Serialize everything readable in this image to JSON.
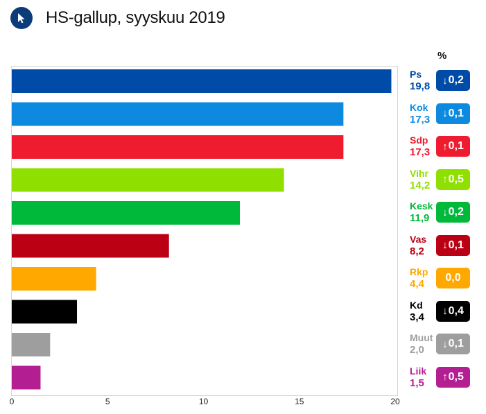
{
  "header": {
    "title": "HS-gallup, syyskuu 2019",
    "logo_icon": "cursor-arrow-icon"
  },
  "pct_header": "%",
  "chart_data": {
    "type": "bar",
    "orientation": "horizontal",
    "title": "HS-gallup, syyskuu 2019",
    "xlabel": "",
    "ylabel": "",
    "xlim": [
      0,
      20
    ],
    "xticks": [
      "0",
      "5",
      "10",
      "15",
      "20"
    ],
    "unit": "%",
    "grid": false,
    "categories": [
      "Ps",
      "Kok",
      "Sdp",
      "Vihr",
      "Kesk",
      "Vas",
      "Rkp",
      "Kd",
      "Muut",
      "Liik"
    ],
    "values": [
      19.8,
      17.3,
      17.3,
      14.2,
      11.9,
      8.2,
      4.4,
      3.4,
      2.0,
      1.5
    ],
    "value_labels": [
      "19,8",
      "17,3",
      "17,3",
      "14,2",
      "11,9",
      "8,2",
      "4,4",
      "3,4",
      "2,0",
      "1,5"
    ],
    "changes": [
      {
        "dir": "down",
        "text": "0,2"
      },
      {
        "dir": "down",
        "text": "0,1"
      },
      {
        "dir": "up",
        "text": "0,1"
      },
      {
        "dir": "up",
        "text": "0,5"
      },
      {
        "dir": "down",
        "text": "0,2"
      },
      {
        "dir": "down",
        "text": "0,1"
      },
      {
        "dir": "none",
        "text": "0,0"
      },
      {
        "dir": "down",
        "text": "0,4"
      },
      {
        "dir": "down",
        "text": "0,1"
      },
      {
        "dir": "up",
        "text": "0,5"
      }
    ],
    "colors": [
      "#004ba8",
      "#0d8ae0",
      "#ee1c2e",
      "#8fe000",
      "#00b93a",
      "#bb0013",
      "#ffa800",
      "#000000",
      "#9e9e9e",
      "#b41e93"
    ]
  }
}
